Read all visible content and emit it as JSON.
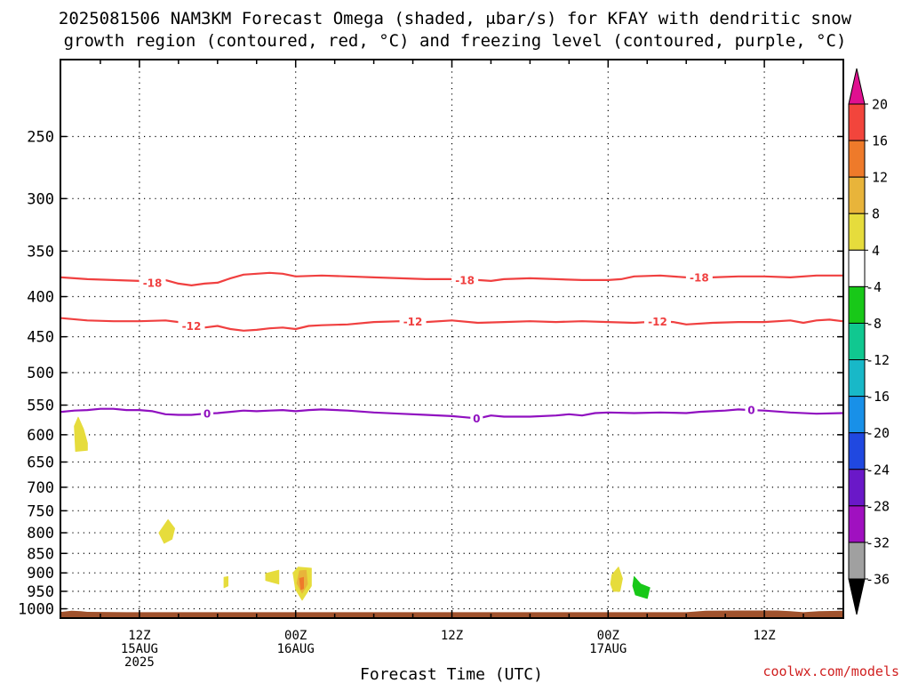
{
  "title_lines": [
    "2025081506 NAM3KM Forecast Omega (shaded, μbar/s) for KFAY with dendritic snow",
    "growth region (contoured, red, °C) and freezing level (contoured, purple, °C)"
  ],
  "credit": "coolwx.com/models",
  "chart_data": {
    "type": "time-height",
    "title": "2025081506 NAM3KM Forecast Omega (shaded, μbar/s) for KFAY with dendritic snow growth region (contoured, red, °C) and freezing level (contoured, purple, °C)",
    "xlabel": "Forecast Time (UTC)",
    "ylabel": "",
    "y_scale": "log-pressure",
    "y_inverted": true,
    "ylim_hpa": [
      1025,
      200
    ],
    "y_ticks": [
      250,
      300,
      350,
      400,
      450,
      500,
      550,
      600,
      650,
      700,
      750,
      800,
      850,
      900,
      950,
      1000
    ],
    "xlim_hours": [
      6,
      66
    ],
    "x_ticks": [
      {
        "hour": 12,
        "lines": [
          "12Z",
          "15AUG",
          "2025"
        ]
      },
      {
        "hour": 24,
        "lines": [
          "00Z",
          "16AUG"
        ]
      },
      {
        "hour": 36,
        "lines": [
          "12Z"
        ]
      },
      {
        "hour": 48,
        "lines": [
          "00Z",
          "17AUG"
        ]
      },
      {
        "hour": 60,
        "lines": [
          "12Z"
        ]
      }
    ],
    "grid": true,
    "colorbar": {
      "labels": [
        "20",
        "16",
        "12",
        "8",
        "4",
        "-4",
        "-8",
        "-12",
        "-16",
        "-20",
        "-24",
        "-28",
        "-32",
        "-36"
      ],
      "bands": [
        {
          "range": [
            16,
            20
          ],
          "color": "#f2453c"
        },
        {
          "range": [
            12,
            16
          ],
          "color": "#ee7a2a"
        },
        {
          "range": [
            8,
            12
          ],
          "color": "#e8b43a"
        },
        {
          "range": [
            4,
            8
          ],
          "color": "#e6dc3c"
        },
        {
          "range": [
            -4,
            4
          ],
          "color": "#ffffff"
        },
        {
          "range": [
            -8,
            -4
          ],
          "color": "#18c818"
        },
        {
          "range": [
            -12,
            -8
          ],
          "color": "#10c890"
        },
        {
          "range": [
            -16,
            -12
          ],
          "color": "#18b8c8"
        },
        {
          "range": [
            -20,
            -16
          ],
          "color": "#1890e8"
        },
        {
          "range": [
            -24,
            -20
          ],
          "color": "#2048e0"
        },
        {
          "range": [
            -28,
            -24
          ],
          "color": "#6a18c8"
        },
        {
          "range": [
            -32,
            -28
          ],
          "color": "#a010c0"
        },
        {
          "range": [
            -36,
            -32
          ],
          "color": "#a0a0a0"
        }
      ],
      "over_color": "#e01090",
      "under_color": "#000000"
    },
    "contours": [
      {
        "name": "-18",
        "color": "#f04040",
        "labels": [
          {
            "hour": 13.0
          },
          {
            "hour": 37.0
          },
          {
            "hour": 55.0
          }
        ],
        "points": [
          [
            6,
            378
          ],
          [
            8,
            380
          ],
          [
            10,
            381
          ],
          [
            12,
            382
          ],
          [
            13,
            384
          ],
          [
            14,
            381
          ],
          [
            15,
            385
          ],
          [
            16,
            387
          ],
          [
            17,
            385
          ],
          [
            18,
            384
          ],
          [
            19,
            379
          ],
          [
            20,
            375
          ],
          [
            21,
            374
          ],
          [
            22,
            373
          ],
          [
            23,
            374
          ],
          [
            24,
            377
          ],
          [
            26,
            376
          ],
          [
            28,
            377
          ],
          [
            30,
            378
          ],
          [
            32,
            379
          ],
          [
            34,
            380
          ],
          [
            36,
            380
          ],
          [
            37,
            381
          ],
          [
            38,
            381
          ],
          [
            39,
            382
          ],
          [
            40,
            380
          ],
          [
            42,
            379
          ],
          [
            44,
            380
          ],
          [
            46,
            381
          ],
          [
            48,
            381
          ],
          [
            49,
            380
          ],
          [
            50,
            377
          ],
          [
            52,
            376
          ],
          [
            54,
            378
          ],
          [
            56,
            378
          ],
          [
            58,
            377
          ],
          [
            60,
            377
          ],
          [
            62,
            378
          ],
          [
            64,
            376
          ],
          [
            66,
            376
          ]
        ]
      },
      {
        "name": "-12",
        "color": "#f04040",
        "labels": [
          {
            "hour": 16.0
          },
          {
            "hour": 33.0
          },
          {
            "hour": 51.8
          }
        ],
        "points": [
          [
            6,
            426
          ],
          [
            8,
            429
          ],
          [
            10,
            430
          ],
          [
            12,
            430
          ],
          [
            14,
            429
          ],
          [
            15,
            431
          ],
          [
            16,
            436
          ],
          [
            17,
            438
          ],
          [
            18,
            436
          ],
          [
            19,
            440
          ],
          [
            20,
            442
          ],
          [
            21,
            441
          ],
          [
            22,
            439
          ],
          [
            23,
            438
          ],
          [
            24,
            440
          ],
          [
            25,
            436
          ],
          [
            26,
            435
          ],
          [
            28,
            434
          ],
          [
            30,
            431
          ],
          [
            32,
            430
          ],
          [
            34,
            431
          ],
          [
            36,
            429
          ],
          [
            38,
            432
          ],
          [
            40,
            431
          ],
          [
            42,
            430
          ],
          [
            44,
            431
          ],
          [
            46,
            430
          ],
          [
            48,
            431
          ],
          [
            50,
            432
          ],
          [
            52,
            430
          ],
          [
            53,
            431
          ],
          [
            54,
            434
          ],
          [
            56,
            432
          ],
          [
            58,
            431
          ],
          [
            60,
            431
          ],
          [
            62,
            429
          ],
          [
            63,
            432
          ],
          [
            64,
            429
          ],
          [
            65,
            428
          ],
          [
            66,
            430
          ]
        ]
      },
      {
        "name": "0",
        "color": "#9010c0",
        "labels": [
          {
            "hour": 17.2
          },
          {
            "hour": 37.9
          },
          {
            "hour": 59.0
          }
        ],
        "points": [
          [
            6,
            561
          ],
          [
            7,
            559
          ],
          [
            8,
            558
          ],
          [
            9,
            556
          ],
          [
            10,
            556
          ],
          [
            11,
            558
          ],
          [
            12,
            558
          ],
          [
            13,
            560
          ],
          [
            14,
            565
          ],
          [
            15,
            566
          ],
          [
            16,
            566
          ],
          [
            17,
            564
          ],
          [
            18,
            563
          ],
          [
            19,
            561
          ],
          [
            20,
            559
          ],
          [
            21,
            560
          ],
          [
            22,
            559
          ],
          [
            23,
            558
          ],
          [
            24,
            560
          ],
          [
            25,
            558
          ],
          [
            26,
            557
          ],
          [
            28,
            559
          ],
          [
            30,
            562
          ],
          [
            32,
            564
          ],
          [
            34,
            566
          ],
          [
            36,
            568
          ],
          [
            37,
            570
          ],
          [
            38,
            572
          ],
          [
            39,
            567
          ],
          [
            40,
            569
          ],
          [
            42,
            569
          ],
          [
            44,
            567
          ],
          [
            45,
            565
          ],
          [
            46,
            567
          ],
          [
            47,
            563
          ],
          [
            48,
            562
          ],
          [
            50,
            563
          ],
          [
            52,
            562
          ],
          [
            54,
            563
          ],
          [
            55,
            561
          ],
          [
            56,
            560
          ],
          [
            57,
            559
          ],
          [
            58,
            557
          ],
          [
            59,
            558
          ],
          [
            60,
            559
          ],
          [
            62,
            562
          ],
          [
            64,
            564
          ],
          [
            66,
            563
          ]
        ]
      }
    ],
    "shaded_regions": [
      {
        "band": "4 to 8",
        "color": "#e6dc3c",
        "points": [
          [
            7.0,
            585
          ],
          [
            7.3,
            570
          ],
          [
            7.7,
            590
          ],
          [
            8.0,
            615
          ],
          [
            8.0,
            628
          ],
          [
            7.1,
            630
          ]
        ]
      },
      {
        "band": "4 to 8",
        "color": "#e6dc3c",
        "points": [
          [
            13.5,
            800
          ],
          [
            14.2,
            770
          ],
          [
            14.7,
            790
          ],
          [
            14.5,
            815
          ],
          [
            13.9,
            825
          ]
        ]
      },
      {
        "band": "4 to 8",
        "color": "#e6dc3c",
        "points": [
          [
            18.5,
            912
          ],
          [
            18.8,
            910
          ],
          [
            18.8,
            935
          ],
          [
            18.5,
            940
          ]
        ]
      },
      {
        "band": "4 to 8",
        "color": "#e6dc3c",
        "points": [
          [
            21.7,
            902
          ],
          [
            22.7,
            893
          ],
          [
            22.7,
            930
          ],
          [
            21.7,
            920
          ]
        ]
      },
      {
        "band": "4 to 8",
        "color": "#e6dc3c",
        "points": [
          [
            24.2,
            885
          ],
          [
            25.2,
            888
          ],
          [
            25.2,
            935
          ],
          [
            24.5,
            975
          ],
          [
            24.0,
            945
          ],
          [
            23.8,
            900
          ]
        ]
      },
      {
        "band": "8 to 12",
        "color": "#e8b43a",
        "points": [
          [
            24.3,
            895
          ],
          [
            24.8,
            893
          ],
          [
            24.9,
            930
          ],
          [
            24.5,
            955
          ],
          [
            24.1,
            928
          ]
        ]
      },
      {
        "band": "12 to 16",
        "color": "#ee7a2a",
        "points": [
          [
            24.3,
            915
          ],
          [
            24.6,
            912
          ],
          [
            24.6,
            942
          ],
          [
            24.4,
            945
          ]
        ]
      },
      {
        "band": "4 to 8",
        "color": "#e6dc3c",
        "points": [
          [
            48.3,
            905
          ],
          [
            48.8,
            885
          ],
          [
            49.1,
            915
          ],
          [
            48.9,
            950
          ],
          [
            48.4,
            950
          ],
          [
            48.2,
            930
          ]
        ]
      },
      {
        "band": "-8 to -4",
        "color": "#18c818",
        "points": [
          [
            50.0,
            910
          ],
          [
            50.5,
            930
          ],
          [
            51.2,
            940
          ],
          [
            51.0,
            970
          ],
          [
            50.1,
            960
          ],
          [
            49.9,
            935
          ]
        ]
      }
    ],
    "terrain": {
      "color": "#a0522d",
      "points": [
        [
          6,
          1009
        ],
        [
          6.8,
          1006
        ],
        [
          7.5,
          1007
        ],
        [
          8,
          1009
        ],
        [
          11,
          1010
        ],
        [
          18,
          1010
        ],
        [
          24,
          1010
        ],
        [
          30,
          1010
        ],
        [
          36,
          1010
        ],
        [
          42,
          1010
        ],
        [
          48,
          1010
        ],
        [
          54,
          1010
        ],
        [
          55.5,
          1006
        ],
        [
          58,
          1005
        ],
        [
          61,
          1005
        ],
        [
          62,
          1007
        ],
        [
          63,
          1010
        ],
        [
          64.2,
          1007
        ],
        [
          66,
          1006
        ]
      ]
    }
  }
}
